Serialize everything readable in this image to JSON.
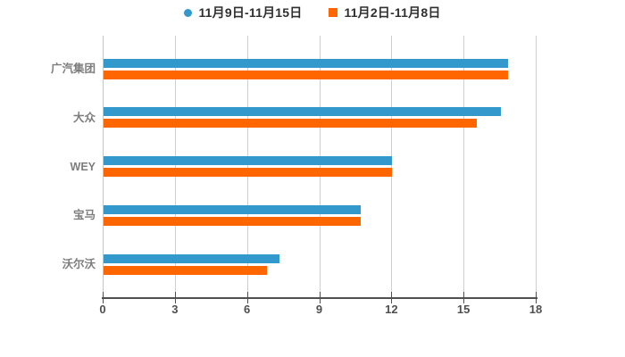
{
  "legend": {
    "items": [
      {
        "label": "11月9日-11月15日",
        "marker": "circle",
        "color": "#3399cc"
      },
      {
        "label": "11月2日-11月8日",
        "marker": "square",
        "color": "#ff6600"
      }
    ]
  },
  "chart_data": {
    "type": "bar",
    "orientation": "horizontal",
    "title": "",
    "categories": [
      "广汽集团",
      "大众",
      "WEY",
      "宝马",
      "沃尔沃"
    ],
    "series": [
      {
        "name": "11月9日-11月15日",
        "color": "#3399cc",
        "values": [
          16.8,
          16.5,
          12.0,
          10.7,
          7.3
        ]
      },
      {
        "name": "11月2日-11月8日",
        "color": "#ff6600",
        "values": [
          16.8,
          15.5,
          12.0,
          10.7,
          6.8
        ]
      }
    ],
    "xlim": [
      0,
      18
    ],
    "xticks": [
      0,
      3,
      6,
      9,
      12,
      15,
      18
    ],
    "grid": true,
    "legend_position": "top"
  }
}
